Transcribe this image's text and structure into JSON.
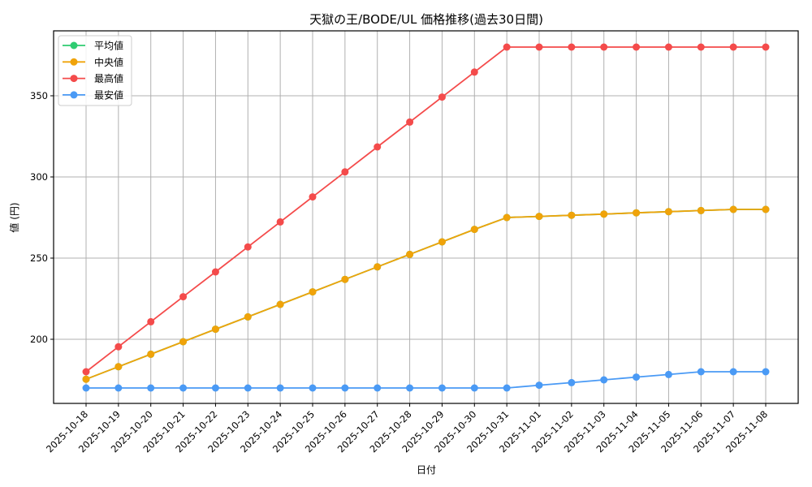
{
  "chart_data": {
    "type": "line",
    "title": "天獄の王/BODE/UL 価格推移(過去30日間)",
    "xlabel": "日付",
    "ylabel": "値 (円)",
    "x": [
      "2025-10-18",
      "2025-10-19",
      "2025-10-20",
      "2025-10-21",
      "2025-10-22",
      "2025-10-23",
      "2025-10-24",
      "2025-10-25",
      "2025-10-26",
      "2025-10-27",
      "2025-10-28",
      "2025-10-29",
      "2025-10-30",
      "2025-10-31",
      "2025-11-01",
      "2025-11-02",
      "2025-11-03",
      "2025-11-04",
      "2025-11-05",
      "2025-11-06",
      "2025-11-07",
      "2025-11-08"
    ],
    "yticks": [
      200,
      250,
      300,
      350
    ],
    "ylim": [
      165,
      390
    ],
    "grid": true,
    "legend_position": "upper left",
    "series": [
      {
        "name": "平均値",
        "color": "#2ecc71",
        "values": [
          175.4,
          183.1,
          190.8,
          198.5,
          206.2,
          213.8,
          221.5,
          229.2,
          236.9,
          244.6,
          252.3,
          260.0,
          267.7,
          275.0,
          275.7,
          276.4,
          277.1,
          277.9,
          278.6,
          279.3,
          280.0,
          280.0
        ]
      },
      {
        "name": "中央値",
        "color": "#f0a30a",
        "values": [
          175.4,
          183.1,
          190.8,
          198.5,
          206.2,
          213.8,
          221.5,
          229.2,
          236.9,
          244.6,
          252.3,
          260.0,
          267.7,
          275.0,
          275.7,
          276.4,
          277.1,
          277.9,
          278.6,
          279.3,
          280.0,
          280.0
        ]
      },
      {
        "name": "最高値",
        "color": "#f44b4b",
        "values": [
          180.0,
          195.4,
          210.8,
          226.2,
          241.5,
          256.9,
          272.3,
          287.7,
          303.1,
          318.5,
          333.8,
          349.2,
          364.6,
          380.0,
          380.0,
          380.0,
          380.0,
          380.0,
          380.0,
          380.0,
          380.0,
          380.0
        ]
      },
      {
        "name": "最安値",
        "color": "#4a9af5",
        "values": [
          170.0,
          170.0,
          170.0,
          170.0,
          170.0,
          170.0,
          170.0,
          170.0,
          170.0,
          170.0,
          170.0,
          170.0,
          170.0,
          170.0,
          171.7,
          173.3,
          175.0,
          176.7,
          178.3,
          180.0,
          180.0,
          180.0
        ]
      }
    ]
  }
}
